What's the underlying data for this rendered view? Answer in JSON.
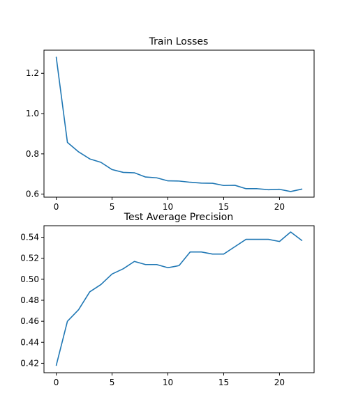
{
  "chart_data": [
    {
      "type": "line",
      "title": "Train Losses",
      "xlabel": "",
      "ylabel": "",
      "xlim": [
        -1.1,
        23.1
      ],
      "ylim": [
        0.585,
        1.315
      ],
      "xticks": [
        0,
        5,
        10,
        15,
        20
      ],
      "xtick_labels": [
        "0",
        "5",
        "10",
        "15",
        "20"
      ],
      "yticks": [
        0.6,
        0.8,
        1.0,
        1.2
      ],
      "ytick_labels": [
        "0.6",
        "0.8",
        "1.0",
        "1.2"
      ],
      "grid": false,
      "color": "#1f77b4",
      "series": [
        {
          "x": [
            0,
            1,
            2,
            3,
            4,
            5,
            6,
            7,
            8,
            9,
            10,
            11,
            12,
            13,
            14,
            15,
            16,
            17,
            18,
            19,
            20,
            21,
            22
          ],
          "values": [
            1.28,
            0.857,
            0.81,
            0.775,
            0.758,
            0.722,
            0.708,
            0.706,
            0.685,
            0.681,
            0.666,
            0.665,
            0.659,
            0.655,
            0.654,
            0.643,
            0.644,
            0.627,
            0.627,
            0.622,
            0.624,
            0.613,
            0.625
          ]
        }
      ]
    },
    {
      "type": "line",
      "title": "Test Average Precision",
      "xlabel": "",
      "ylabel": "",
      "xlim": [
        -1.1,
        23.1
      ],
      "ylim": [
        0.411,
        0.551
      ],
      "xticks": [
        0,
        5,
        10,
        15,
        20
      ],
      "xtick_labels": [
        "0",
        "5",
        "10",
        "15",
        "20"
      ],
      "yticks": [
        0.42,
        0.44,
        0.46,
        0.48,
        0.5,
        0.52,
        0.54
      ],
      "ytick_labels": [
        "0.42",
        "0.44",
        "0.46",
        "0.48",
        "0.50",
        "0.52",
        "0.54"
      ],
      "grid": false,
      "color": "#1f77b4",
      "series": [
        {
          "x": [
            0,
            1,
            2,
            3,
            4,
            5,
            6,
            7,
            8,
            9,
            10,
            11,
            12,
            13,
            14,
            15,
            16,
            17,
            18,
            19,
            20,
            21,
            22
          ],
          "values": [
            0.418,
            0.46,
            0.471,
            0.488,
            0.495,
            0.505,
            0.51,
            0.517,
            0.514,
            0.514,
            0.511,
            0.513,
            0.526,
            0.526,
            0.524,
            0.524,
            0.531,
            0.538,
            0.538,
            0.538,
            0.536,
            0.545,
            0.537
          ]
        }
      ]
    }
  ]
}
